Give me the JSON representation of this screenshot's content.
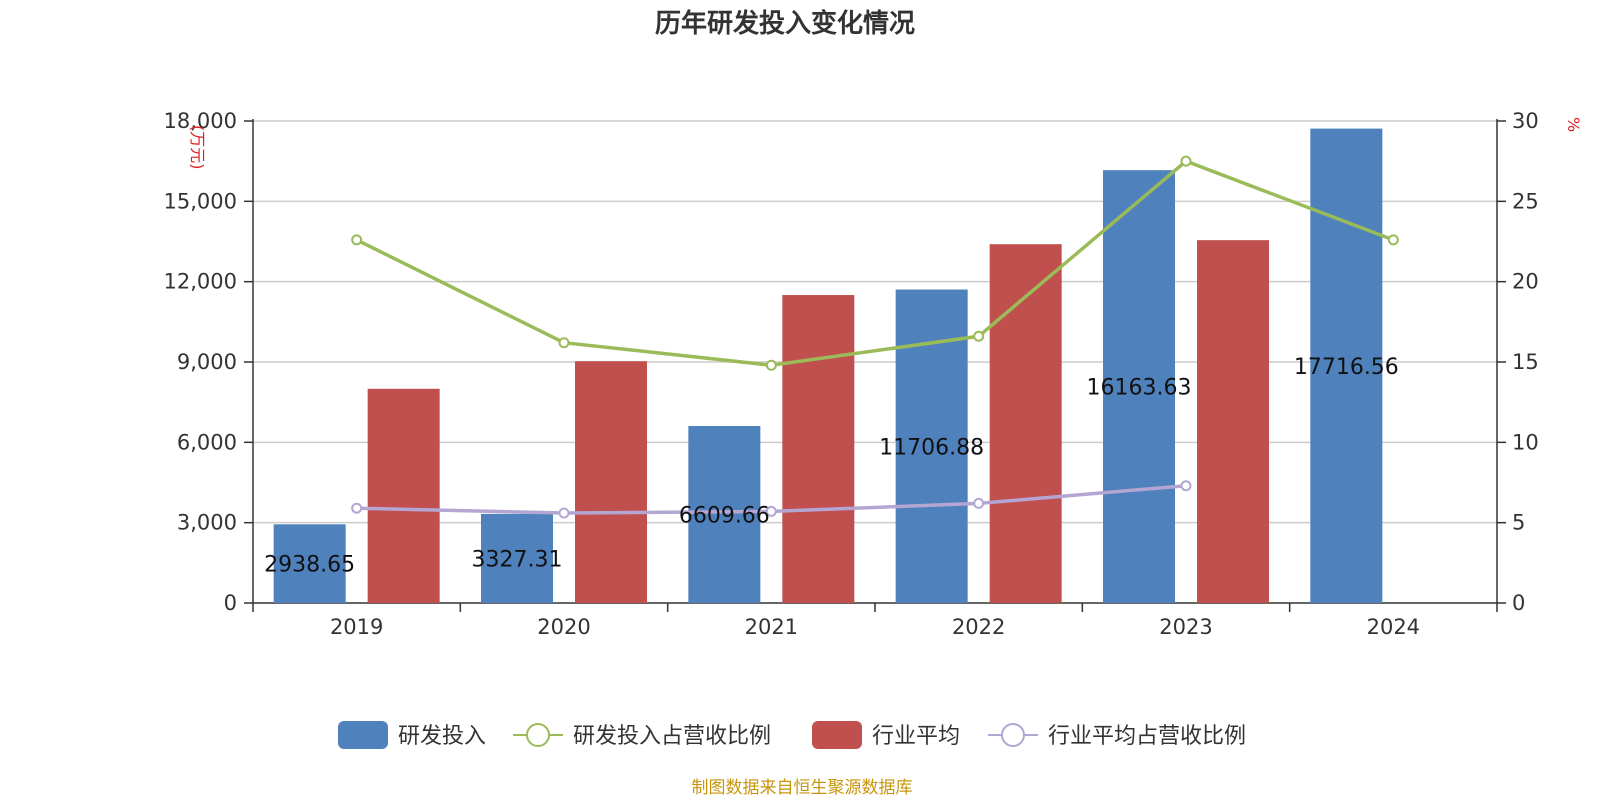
{
  "chart_data": {
    "type": "bar",
    "title": "历年研发投入变化情况",
    "categories": [
      "2019",
      "2020",
      "2021",
      "2022",
      "2023",
      "2024"
    ],
    "y_left": {
      "unit": "(万元)",
      "min": 0,
      "max": 18000,
      "ticks": [
        0,
        3000,
        6000,
        9000,
        12000,
        15000,
        18000
      ],
      "tick_labels": [
        "0",
        "3,000",
        "6,000",
        "9,000",
        "12,000",
        "15,000",
        "18,000"
      ]
    },
    "y_right": {
      "unit": "%",
      "min": 0,
      "max": 30,
      "ticks": [
        0,
        5,
        10,
        15,
        20,
        25,
        30
      ],
      "tick_labels": [
        "0",
        "5",
        "10",
        "15",
        "20",
        "25",
        "30"
      ]
    },
    "grid": true,
    "legend_position": "bottom",
    "series": [
      {
        "name": "研发投入",
        "kind": "bar",
        "axis": "left",
        "color": "#4f81bd",
        "values": [
          2938.65,
          3327.31,
          6609.66,
          11706.88,
          16163.63,
          17716.56
        ],
        "labels": [
          "2938.65",
          "3327.31",
          "6609.66",
          "11706.88",
          "16163.63",
          "17716.56"
        ]
      },
      {
        "name": "研发投入占营收比例",
        "kind": "line",
        "axis": "right",
        "color": "#9bbb59",
        "values": [
          22.6,
          16.2,
          14.8,
          16.6,
          27.5,
          22.6
        ]
      },
      {
        "name": "行业平均",
        "kind": "bar",
        "axis": "left",
        "color": "#c0504d",
        "values": [
          8000,
          9030,
          11500,
          13400,
          13550,
          null
        ]
      },
      {
        "name": "行业平均占营收比例",
        "kind": "line",
        "axis": "right",
        "color": "#b3a6d3",
        "values": [
          5.9,
          5.6,
          5.7,
          6.2,
          7.3,
          null
        ]
      }
    ],
    "source": "制图数据来自恒生聚源数据库"
  }
}
